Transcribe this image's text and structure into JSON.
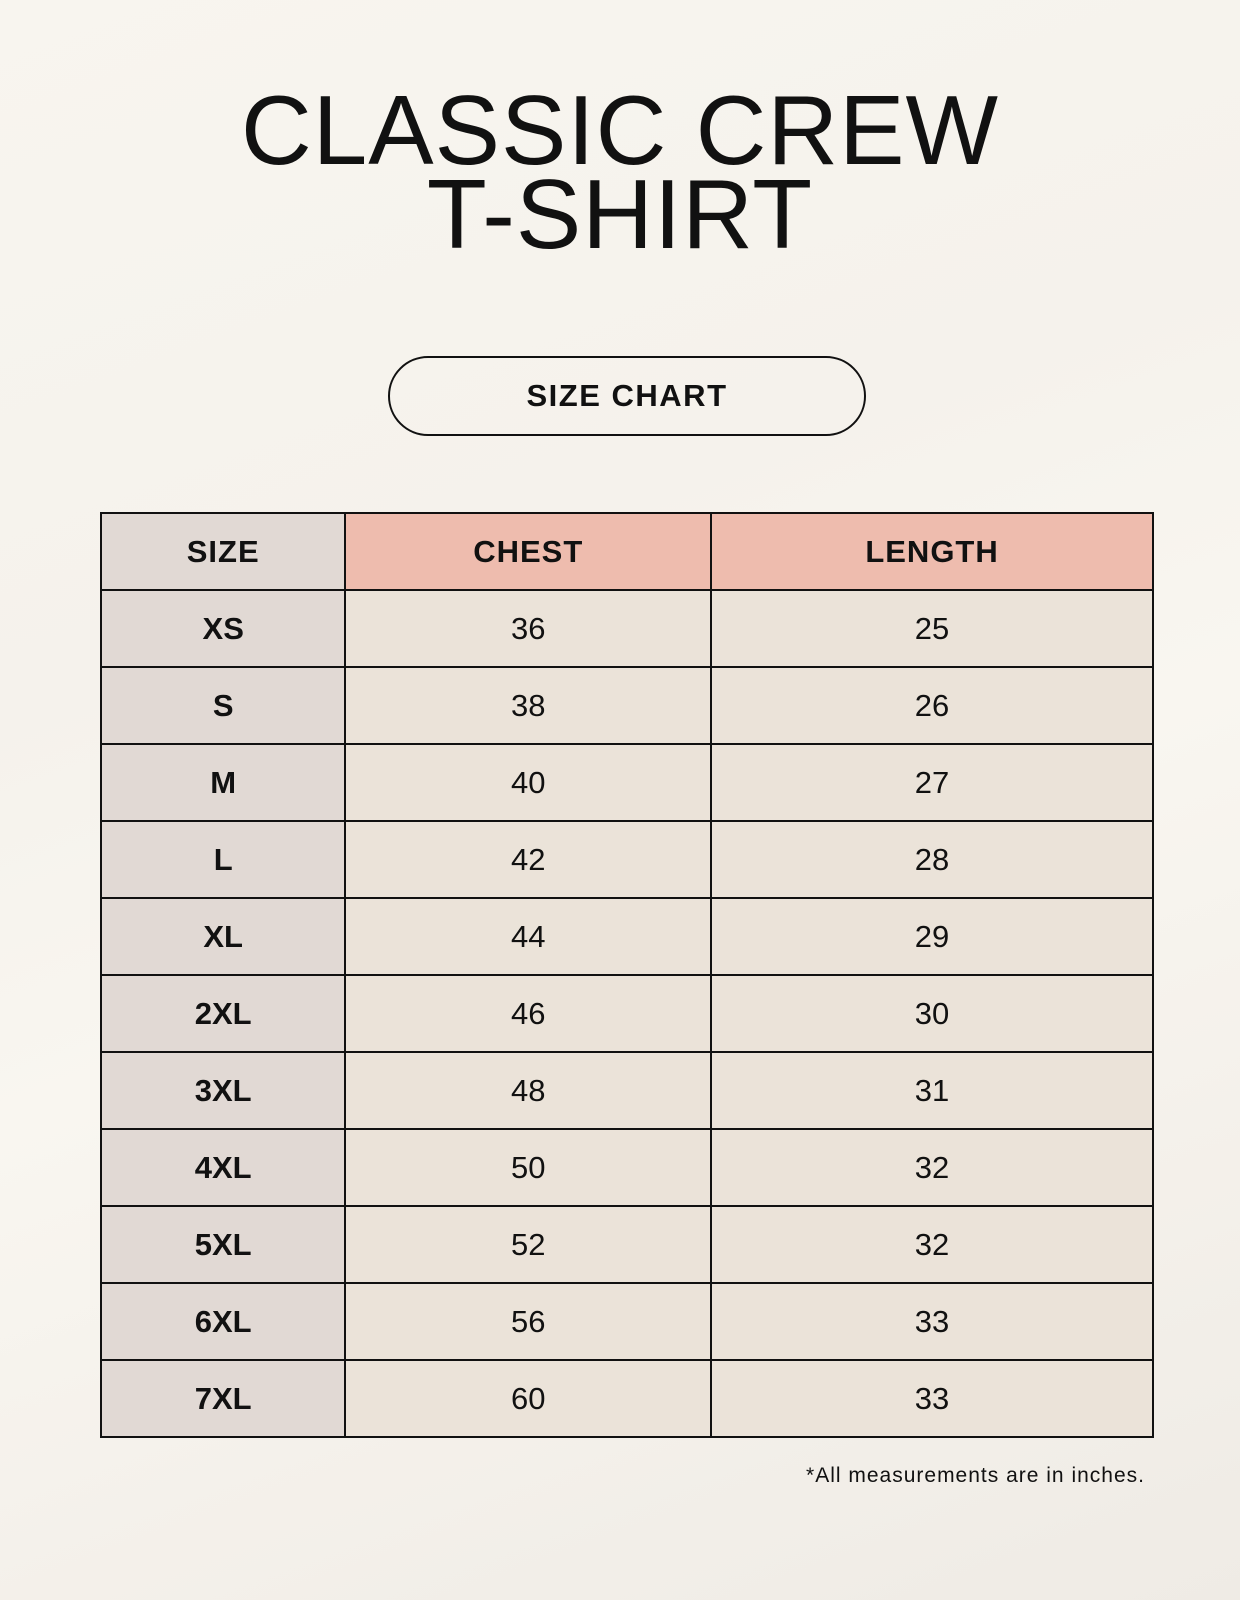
{
  "title": {
    "line1": "CLASSIC CREW",
    "line2": "T-SHIRT"
  },
  "badge": "SIZE CHART",
  "table": {
    "headers": [
      "SIZE",
      "CHEST",
      "LENGTH"
    ],
    "rows": [
      [
        "XS",
        "36",
        "25"
      ],
      [
        "S",
        "38",
        "26"
      ],
      [
        "M",
        "40",
        "27"
      ],
      [
        "L",
        "42",
        "28"
      ],
      [
        "XL",
        "44",
        "29"
      ],
      [
        "2XL",
        "46",
        "30"
      ],
      [
        "3XL",
        "48",
        "31"
      ],
      [
        "4XL",
        "50",
        "32"
      ],
      [
        "5XL",
        "52",
        "32"
      ],
      [
        "6XL",
        "56",
        "33"
      ],
      [
        "7XL",
        "60",
        "33"
      ]
    ]
  },
  "footnote": "*All measurements are in inches.",
  "colors": {
    "header_accent": "#eebcae",
    "size_column": "#e1d9d4",
    "value_cells": "#ebe3d9"
  }
}
